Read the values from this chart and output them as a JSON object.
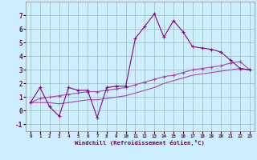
{
  "xlabel": "Windchill (Refroidissement éolien,°C)",
  "x": [
    0,
    1,
    2,
    3,
    4,
    5,
    6,
    7,
    8,
    9,
    10,
    11,
    12,
    13,
    14,
    15,
    16,
    17,
    18,
    19,
    20,
    21,
    22,
    23
  ],
  "y_main": [
    0.6,
    1.7,
    0.3,
    -0.4,
    1.7,
    1.5,
    1.5,
    -0.5,
    1.7,
    1.8,
    1.8,
    5.3,
    6.2,
    7.1,
    5.4,
    6.6,
    5.8,
    4.7,
    4.6,
    4.5,
    4.3,
    3.7,
    3.1,
    3.0
  ],
  "y_trend1": [
    0.6,
    0.9,
    1.0,
    1.1,
    1.2,
    1.3,
    1.4,
    1.4,
    1.5,
    1.6,
    1.7,
    1.9,
    2.1,
    2.3,
    2.5,
    2.6,
    2.8,
    3.0,
    3.1,
    3.2,
    3.3,
    3.5,
    3.6,
    3.0
  ],
  "y_trend2": [
    0.6,
    0.6,
    0.6,
    0.5,
    0.6,
    0.7,
    0.8,
    0.8,
    0.9,
    1.0,
    1.1,
    1.3,
    1.5,
    1.7,
    2.0,
    2.2,
    2.4,
    2.6,
    2.7,
    2.8,
    2.9,
    3.0,
    3.1,
    3.0
  ],
  "color_main": "#880088",
  "color_trend": "#aa44aa",
  "bg_color": "#cceeff",
  "grid_color": "#99bbbb",
  "ylim": [
    -1.5,
    8.0
  ],
  "xlim": [
    -0.5,
    23.5
  ],
  "yticks": [
    -1,
    0,
    1,
    2,
    3,
    4,
    5,
    6,
    7
  ],
  "xticks": [
    0,
    1,
    2,
    3,
    4,
    5,
    6,
    7,
    8,
    9,
    10,
    11,
    12,
    13,
    14,
    15,
    16,
    17,
    18,
    19,
    20,
    21,
    22,
    23
  ],
  "marker": "+",
  "linewidth": 0.8,
  "markersize": 3.5,
  "markeredgewidth": 0.8
}
